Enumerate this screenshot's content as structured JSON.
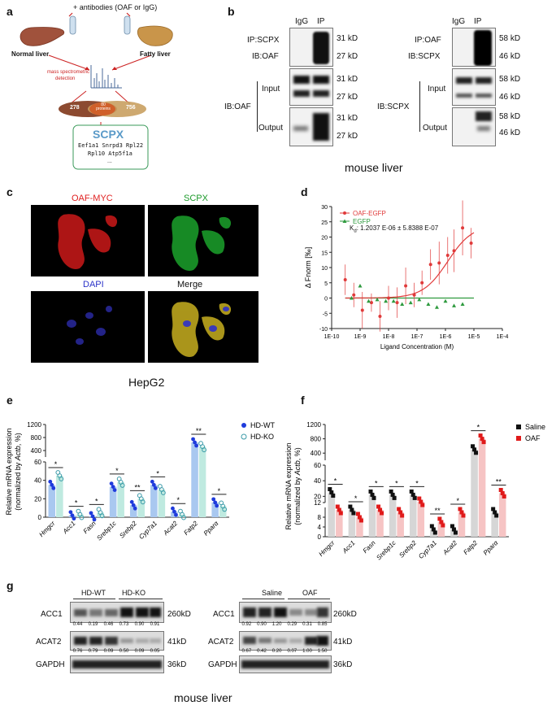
{
  "panels": {
    "a": "a",
    "b": "b",
    "c": "c",
    "d": "d",
    "e": "e",
    "f": "f",
    "g": "g"
  },
  "a": {
    "antibodies": "+ antibodies (OAF or IgG)",
    "normal_liver": "Normal liver",
    "fatty_liver": "Fatty liver",
    "ms_line1": "mass spectrometric",
    "ms_line2": "detection",
    "venn_left": "278",
    "venn_mid": "80 proteins",
    "venn_right": "756",
    "box_title": "SCPX",
    "box_line1": "Eef1a1  Snrpd3  Rpl22",
    "box_line2": "Rpl10  Atp5f1a",
    "box_line3": "..."
  },
  "b": {
    "left": {
      "igg": "IgG",
      "ip": "IP",
      "ip_label": "IP:SCPX",
      "ib_label": "IB:OAF",
      "ib_input": "IB:OAF",
      "input": "Input",
      "output": "Output",
      "sizes": [
        "31 kD",
        "27 kD",
        "31 kD",
        "27 kD",
        "31 kD",
        "27 kD"
      ]
    },
    "right": {
      "igg": "IgG",
      "ip": "IP",
      "ip_label": "IP:OAF",
      "ib_label": "IB:SCPX",
      "ib_input": "IB:SCPX",
      "input": "Input",
      "output": "Output",
      "sizes": [
        "58 kD",
        "46 kD",
        "58 kD",
        "46 kD",
        "58 kD",
        "46 kD"
      ]
    },
    "caption": "mouse liver"
  },
  "c": {
    "oaf_myc": "OAF-MYC",
    "scpx": "SCPX",
    "dapi": "DAPI",
    "merge": "Merge",
    "caption": "HepG2",
    "colors": {
      "oaf": "#e02020",
      "scpx": "#1c9a2a",
      "dapi": "#2a32c8"
    }
  },
  "d": {
    "legend": [
      "OAF-EGFP",
      "EGFP"
    ],
    "kd_label": "K",
    "kd_sub": "d",
    "kd_value": ": 1.2037 E-06 ± 5.8388 E-07",
    "ylabel": "Δ Fnorm [‰]",
    "xlabel": "Ligand Concentration (M)",
    "yticks": [
      "30",
      "25",
      "20",
      "15",
      "10",
      "5",
      "0",
      "-5",
      "-10"
    ],
    "xticks": [
      "1E-10",
      "1E-9",
      "1E-8",
      "1E-7",
      "1E-6",
      "1E-5",
      "1E-4"
    ]
  },
  "chart_data": [
    {
      "type": "scatter",
      "panel": "d",
      "xlabel": "Ligand Concentration (M)",
      "ylabel": "Δ Fnorm [‰]",
      "xscale": "log",
      "xlim": [
        1e-10,
        0.0001
      ],
      "ylim": [
        -10,
        30
      ],
      "series": [
        {
          "name": "OAF-EGFP",
          "color": "#e03a3a",
          "x": [
            3e-10,
            6e-10,
            1.2e-09,
            2.5e-09,
            5e-09,
            1e-08,
            2e-08,
            4e-08,
            8e-08,
            1.5e-07,
            3e-07,
            6e-07,
            1.2e-06,
            2e-06,
            4e-06,
            8e-06
          ],
          "y": [
            6,
            1,
            -4,
            -1.5,
            -6,
            0,
            -1.5,
            4,
            1,
            5,
            11,
            11.5,
            14,
            15.5,
            23,
            18
          ],
          "err": [
            5,
            4,
            6,
            3,
            5,
            4,
            5,
            6,
            4,
            4,
            5,
            7,
            6,
            7,
            9,
            5
          ]
        },
        {
          "name": "EGFP",
          "color": "#2e9a3e",
          "x": [
            5e-10,
            1e-09,
            2e-09,
            4e-09,
            8e-09,
            1.5e-08,
            3e-08,
            6e-08,
            1.2e-07,
            2.5e-07,
            5e-07,
            1e-06,
            2e-06,
            4e-06
          ],
          "y": [
            0,
            4,
            -1,
            -0.5,
            -1,
            -1,
            -2,
            -1.5,
            -0.5,
            -2,
            -3,
            -1,
            -2.5,
            -2
          ]
        }
      ]
    },
    {
      "type": "bar",
      "panel": "e",
      "ylabel": "Relative mRNA expression (normalized by Actb, %)",
      "categories": [
        "Hmgcr",
        "Acc1",
        "Fasn",
        "Srebp1c",
        "Srebp2",
        "Cyp7a1",
        "Acat2",
        "Fatp2",
        "Pparα"
      ],
      "significance": [
        "*",
        "*",
        "*",
        "*",
        "**",
        "*",
        "*",
        "**",
        "*"
      ],
      "series": [
        {
          "name": "HD-WT",
          "color": "#1f3bdc",
          "values": [
            35,
            2,
            1,
            33,
            13,
            35,
            6,
            650,
            16
          ]
        },
        {
          "name": "HD-KO",
          "color": "#3a9aa8",
          "values": [
            45,
            3,
            5,
            38,
            20,
            30,
            3,
            520,
            12
          ]
        }
      ]
    },
    {
      "type": "bar",
      "panel": "f",
      "ylabel": "Relative mRNA expression (normalized by Actb, %)",
      "categories": [
        "Hmgcr",
        "Acc1",
        "Fasn",
        "Srebp1c",
        "Srebp2",
        "Cyp7a1",
        "Acat2",
        "Fatp2",
        "Pparα"
      ],
      "significance": [
        "*",
        "*",
        "*",
        "*",
        "*",
        "**",
        "*",
        "*",
        "**"
      ],
      "series": [
        {
          "name": "Saline",
          "color": "#111111",
          "values": [
            25,
            11,
            22,
            22,
            22,
            3,
            3,
            500,
            10
          ]
        },
        {
          "name": "OAF",
          "color": "#e01a1a",
          "values": [
            11,
            8,
            11,
            10,
            13,
            6,
            10,
            800,
            24
          ]
        }
      ]
    }
  ],
  "e": {
    "yticks": [
      "1200",
      "800",
      "400",
      "60",
      "40",
      "20",
      "0"
    ],
    "legend": [
      "HD-WT",
      "HD-KO"
    ],
    "ylabel1": "Relative mRNA expression",
    "ylabel2": "(normalized by ",
    "ylabel_actb": "Actb",
    "ylabel_end": ", %)"
  },
  "f": {
    "yticks": [
      "1200",
      "800",
      "400",
      "60",
      "40",
      "20",
      "12",
      "8",
      "4",
      "0"
    ],
    "legend": [
      "Saline",
      "OAF"
    ],
    "ylabel1": "Relative mRNA expression",
    "ylabel2": "(normalized by ",
    "ylabel_actb": "Actb",
    "ylabel_end": ", %)"
  },
  "g": {
    "left": {
      "group1": "HD-WT",
      "group2": "HD-KO",
      "acc1": "ACC1",
      "acat2": "ACAT2",
      "gapdh": "GAPDH",
      "size1": "260kD",
      "size2": "41kD",
      "size3": "36kD",
      "q1": [
        "0.44",
        "0.19",
        "0.46",
        "0.73",
        "0.90",
        "0.91"
      ],
      "q2": [
        "0.76",
        "0.79",
        "0.09",
        "0.50",
        "0.09",
        "0.05"
      ]
    },
    "right": {
      "group1": "Saline",
      "group2": "OAF",
      "acc1": "ACC1",
      "acat2": "ACAT2",
      "gapdh": "GAPDH",
      "size1": "260kD",
      "size2": "41kD",
      "size3": "36kD",
      "q1": [
        "0.92",
        "0.90",
        "1.20",
        "0.29",
        "0.31",
        "0.85"
      ],
      "q2": [
        "0.67",
        "0.42",
        "0.20",
        "0.07",
        "1.00",
        "1.50"
      ]
    },
    "caption": "mouse liver"
  }
}
